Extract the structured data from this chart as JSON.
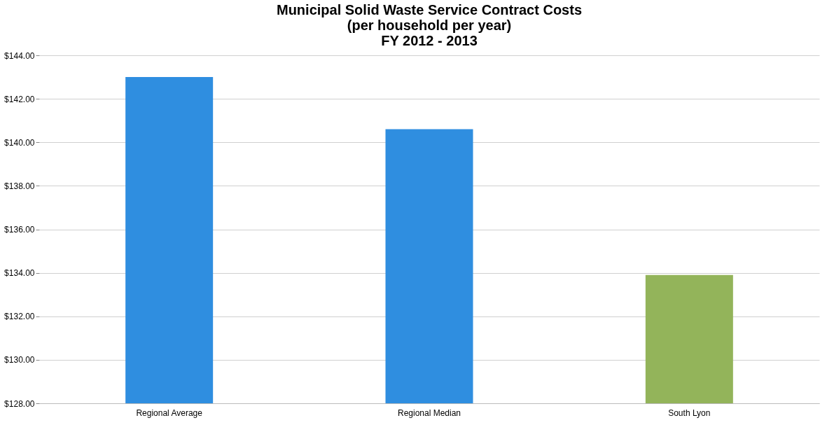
{
  "chart_data": {
    "type": "bar",
    "title": [
      "Municipal Solid Waste Service Contract Costs",
      "(per household per year)",
      "FY 2012 - 2013"
    ],
    "categories": [
      "Regional Average",
      "Regional Median",
      "South Lyon"
    ],
    "values": [
      143.0,
      140.6,
      133.9
    ],
    "colors": [
      "#2f8ee0",
      "#2f8ee0",
      "#93b45a"
    ],
    "ylim": [
      128,
      144
    ],
    "yticks": [
      {
        "value": 128,
        "label": "$128.00"
      },
      {
        "value": 130,
        "label": "$130.00"
      },
      {
        "value": 132,
        "label": "$132.00"
      },
      {
        "value": 134,
        "label": "$134.00"
      },
      {
        "value": 136,
        "label": "$136.00"
      },
      {
        "value": 138,
        "label": "$138.00"
      },
      {
        "value": 140,
        "label": "$140.00"
      },
      {
        "value": 142,
        "label": "$142.00"
      },
      {
        "value": 144,
        "label": "$144.00"
      }
    ],
    "grid": "y"
  }
}
